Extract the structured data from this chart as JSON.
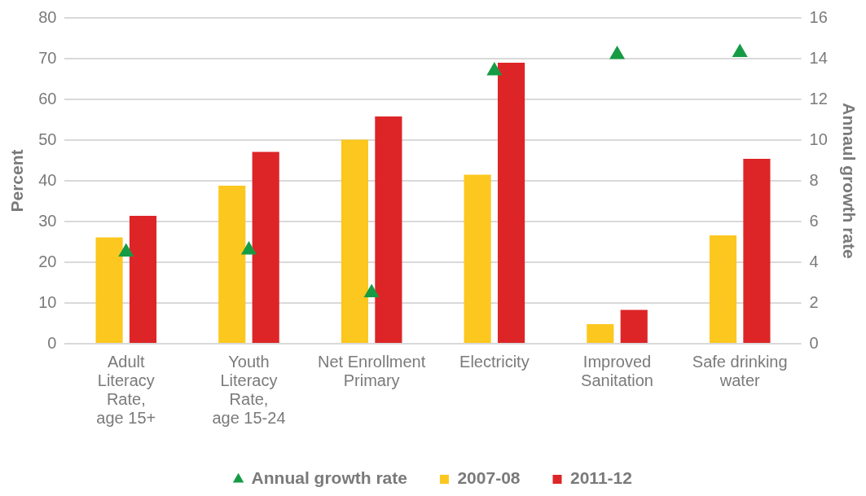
{
  "chart_data": {
    "type": "bar",
    "categories": [
      "Adult\nLiteracy\nRate,\nage 15+",
      "Youth\nLiteracy\nRate,\nage 15-24",
      "Net Enrollment\nPrimary",
      "Electricity",
      "Improved\nSanitation",
      "Safe drinking\nwater"
    ],
    "series": [
      {
        "name": "2007-08",
        "color": "#fcc71e",
        "values": [
          26.1,
          38.8,
          50.1,
          41.5,
          4.8,
          26.6
        ]
      },
      {
        "name": "2011-12",
        "color": "#dd2527",
        "values": [
          31.4,
          47.1,
          55.8,
          69.0,
          8.3,
          45.4
        ]
      },
      {
        "name": "Annual growth rate",
        "type": "scatter",
        "axis": "y2",
        "marker": "triangle",
        "color": "#169b45",
        "values": [
          4.5,
          4.6,
          2.5,
          13.4,
          14.2,
          14.3
        ]
      }
    ],
    "ylabel": "Percent",
    "y2label": "Annaul growth rate",
    "ylim": [
      0,
      80
    ],
    "yticks": [
      0,
      10,
      20,
      30,
      40,
      50,
      60,
      70,
      80
    ],
    "y2lim": [
      0,
      16
    ],
    "y2ticks": [
      0,
      2,
      4,
      6,
      8,
      10,
      12,
      14,
      16
    ],
    "grid": "y",
    "legend": "bottom"
  }
}
